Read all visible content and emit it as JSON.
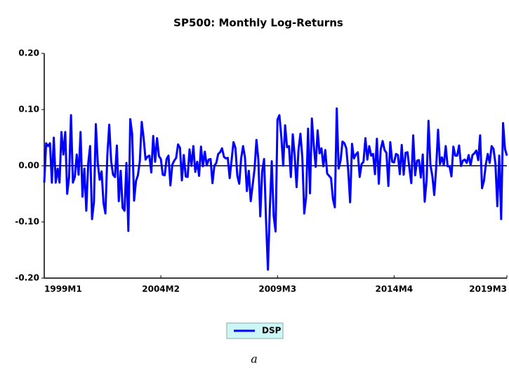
{
  "chart_data": {
    "type": "line",
    "title": "SP500: Monthly Log-Returns",
    "caption": "a",
    "categories": [
      "1999M1",
      null,
      null,
      null,
      null,
      null,
      null,
      null,
      null,
      null,
      null,
      null,
      null,
      null,
      null,
      null,
      null,
      null,
      null,
      null,
      null,
      null,
      null,
      null,
      null,
      null,
      null,
      null,
      null,
      null,
      null,
      null,
      null,
      null,
      null,
      null,
      null,
      null,
      null,
      null,
      null,
      null,
      null,
      null,
      null,
      null,
      null,
      null,
      null,
      null,
      null,
      null,
      null,
      null,
      null,
      null,
      null,
      null,
      null,
      null,
      null,
      "2004M2",
      null,
      null,
      null,
      null,
      null,
      null,
      null,
      null,
      null,
      null,
      null,
      null,
      null,
      null,
      null,
      null,
      null,
      null,
      null,
      null,
      null,
      null,
      null,
      null,
      null,
      null,
      null,
      null,
      null,
      null,
      null,
      null,
      null,
      null,
      null,
      null,
      null,
      null,
      null,
      null,
      null,
      null,
      null,
      null,
      null,
      null,
      null,
      null,
      null,
      null,
      null,
      null,
      null,
      null,
      null,
      null,
      null,
      null,
      null,
      null,
      "2009M3",
      null,
      null,
      null,
      null,
      null,
      null,
      null,
      null,
      null,
      null,
      null,
      null,
      null,
      null,
      null,
      null,
      null,
      null,
      null,
      null,
      null,
      null,
      null,
      null,
      null,
      null,
      null,
      null,
      null,
      null,
      null,
      null,
      null,
      null,
      null,
      null,
      null,
      null,
      null,
      null,
      null,
      null,
      null,
      null,
      null,
      null,
      null,
      null,
      null,
      null,
      null,
      null,
      null,
      null,
      null,
      null,
      null,
      null,
      null,
      null,
      "2014M4",
      null,
      null,
      null,
      null,
      null,
      null,
      null,
      null,
      null,
      null,
      null,
      null,
      null,
      null,
      null,
      null,
      null,
      null,
      null,
      null,
      null,
      null,
      null,
      null,
      null,
      null,
      null,
      null,
      null,
      null,
      null,
      null,
      null,
      null,
      null,
      null,
      null,
      null,
      null,
      null,
      null,
      null,
      null,
      null,
      null,
      null,
      null,
      null,
      null,
      null,
      null,
      null,
      null,
      null,
      null,
      null,
      null,
      null,
      "2019M3"
    ],
    "series": [
      {
        "name": "DSP",
        "color": "#0000ff",
        "values": [
          -0.03,
          0.04,
          0.035,
          0.04,
          -0.03,
          0.05,
          -0.03,
          -0.005,
          -0.03,
          0.06,
          0.02,
          0.06,
          -0.05,
          -0.02,
          0.09,
          -0.03,
          -0.02,
          0.02,
          -0.016,
          0.06,
          -0.055,
          -0.005,
          -0.08,
          0.004,
          0.035,
          -0.095,
          -0.065,
          0.074,
          0.005,
          -0.025,
          -0.01,
          -0.066,
          -0.085,
          0.018,
          0.073,
          0.008,
          -0.016,
          -0.02,
          0.036,
          -0.063,
          -0.009,
          -0.075,
          -0.08,
          0.005,
          -0.116,
          0.083,
          0.056,
          -0.062,
          -0.027,
          -0.017,
          0.008,
          0.078,
          0.049,
          0.011,
          0.016,
          0.018,
          -0.012,
          0.053,
          0.007,
          0.049,
          0.017,
          0.012,
          -0.016,
          -0.017,
          0.012,
          0.018,
          -0.035,
          0.002,
          0.009,
          0.014,
          0.038,
          0.032,
          -0.026,
          0.019,
          -0.019,
          -0.02,
          0.029,
          -0.0001,
          0.035,
          -0.011,
          0.007,
          -0.018,
          0.034,
          -0.001,
          0.025,
          0.0005,
          0.011,
          0.012,
          -0.031,
          0.0001,
          0.005,
          0.021,
          0.024,
          0.031,
          0.016,
          0.013,
          0.014,
          -0.022,
          0.01,
          0.042,
          0.032,
          -0.018,
          -0.032,
          0.013,
          0.035,
          0.015,
          -0.045,
          -0.009,
          -0.063,
          -0.035,
          -0.006,
          0.046,
          0.011,
          -0.09,
          -0.01,
          0.012,
          -0.095,
          -0.185,
          -0.077,
          0.008,
          -0.089,
          -0.117,
          0.082,
          0.09,
          0.052,
          0.0002,
          0.072,
          0.033,
          0.035,
          -0.02,
          0.056,
          0.018,
          -0.038,
          0.028,
          0.057,
          0.015,
          -0.085,
          -0.055,
          0.066,
          -0.049,
          0.084,
          0.036,
          -0.002,
          0.063,
          0.022,
          0.031,
          -0.001,
          0.028,
          -0.014,
          -0.018,
          -0.022,
          -0.059,
          -0.074,
          0.102,
          -0.005,
          0.009,
          0.043,
          0.04,
          0.031,
          -0.008,
          -0.065,
          0.039,
          0.013,
          0.02,
          0.024,
          -0.02,
          0.003,
          0.007,
          0.049,
          0.011,
          0.035,
          0.018,
          0.021,
          -0.015,
          0.048,
          -0.032,
          0.029,
          0.044,
          0.028,
          0.023,
          -0.036,
          0.042,
          0.007,
          0.006,
          0.021,
          0.019,
          -0.015,
          0.037,
          -0.016,
          0.023,
          0.024,
          -0.004,
          -0.031,
          0.054,
          -0.017,
          0.009,
          0.01,
          -0.021,
          0.02,
          -0.064,
          -0.026,
          0.08,
          0.001,
          -0.018,
          -0.052,
          -0.004,
          0.064,
          0.003,
          0.015,
          0.001,
          0.035,
          -0.001,
          -0.001,
          -0.019,
          0.034,
          0.018,
          0.018,
          0.036,
          -0.0004,
          0.009,
          0.011,
          0.005,
          0.019,
          0.001,
          0.019,
          0.022,
          0.027,
          0.01,
          0.054,
          -0.04,
          -0.027,
          0.003,
          0.021,
          0.005,
          0.035,
          0.03,
          0.004,
          -0.072,
          0.018,
          -0.095,
          0.076,
          0.03,
          0.018
        ]
      }
    ],
    "ylim": [
      -0.2,
      0.2
    ],
    "yticks": [
      {
        "value": -0.2,
        "label": "-0.20"
      },
      {
        "value": -0.1,
        "label": "-0.10"
      },
      {
        "value": 0,
        "label": "0.00"
      },
      {
        "value": 0.1,
        "label": "0.10"
      },
      {
        "value": 0.2,
        "label": "0.20"
      }
    ],
    "zero_line": true,
    "legend": "bottom"
  }
}
